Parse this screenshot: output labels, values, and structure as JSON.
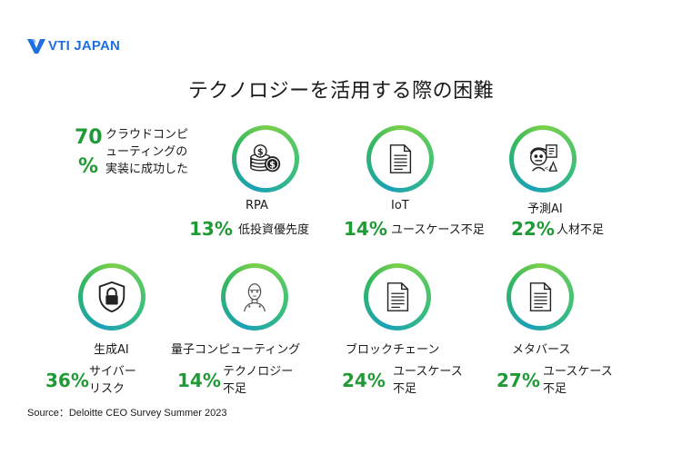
{
  "logo": {
    "text": "VTI JAPAN",
    "color": "#1f6fe0"
  },
  "title": "テクノロジーを活用する際の困難",
  "highlight": {
    "number": "70",
    "symbol": "%",
    "line1": "クラウドコンピ",
    "line2": "ューティングの",
    "line3": "実装に成功した"
  },
  "colors": {
    "accent_green": "#1f9a35",
    "ring_start": "#7ad04a",
    "ring_end": "#1aa0b8"
  },
  "items": [
    {
      "icon": "coins-icon",
      "label": "RPA",
      "percent": "13%",
      "desc_line1": "低投資優先度",
      "desc_line2": ""
    },
    {
      "icon": "document-icon",
      "label": "IoT",
      "percent": "14%",
      "desc_line1": "ユースケース不足",
      "desc_line2": ""
    },
    {
      "icon": "ai-robot-icon",
      "label": "予測AI",
      "percent": "22%",
      "desc_line1": "人材不足",
      "desc_line2": ""
    },
    {
      "icon": "shield-lock-icon",
      "label": "生成AI",
      "percent": "36%",
      "desc_line1": "サイバー",
      "desc_line2": "リスク"
    },
    {
      "icon": "humanoid-robot-icon",
      "label": "量子コンピューティング",
      "percent": "14%",
      "desc_line1": "テクノロジー",
      "desc_line2": "不足"
    },
    {
      "icon": "document-icon",
      "label": "ブロックチェーン",
      "percent": "24%",
      "desc_line1": "ユースケース",
      "desc_line2": "不足"
    },
    {
      "icon": "document-icon",
      "label": "メタバース",
      "percent": "27%",
      "desc_line1": "ユースケース",
      "desc_line2": "不足"
    }
  ],
  "source": "Source：Deloitte CEO Survey Summer 2023"
}
